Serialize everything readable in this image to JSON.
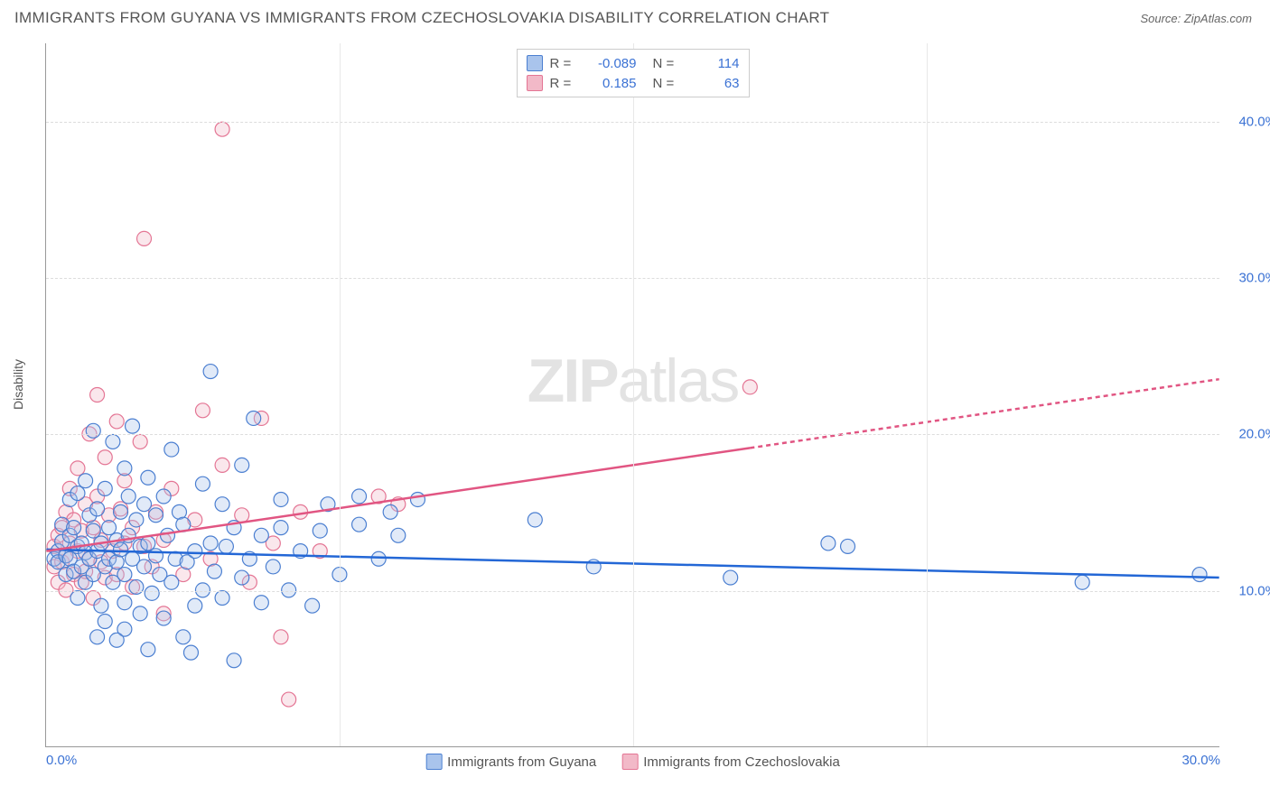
{
  "header": {
    "title": "IMMIGRANTS FROM GUYANA VS IMMIGRANTS FROM CZECHOSLOVAKIA DISABILITY CORRELATION CHART",
    "source_prefix": "Source: ",
    "source_name": "ZipAtlas.com"
  },
  "ylabel": "Disability",
  "watermark_bold": "ZIP",
  "watermark_light": "atlas",
  "chart": {
    "type": "scatter_with_regression",
    "background_color": "#ffffff",
    "axis_color": "#999999",
    "grid_color": "#dddddd",
    "tick_label_color": "#3b72d4",
    "xlim": [
      0,
      30
    ],
    "ylim": [
      0,
      45
    ],
    "y_ticks": [
      10,
      20,
      30,
      40
    ],
    "y_tick_labels": [
      "10.0%",
      "20.0%",
      "30.0%",
      "40.0%"
    ],
    "x_ticks": [
      0,
      30
    ],
    "x_tick_labels": [
      "0.0%",
      "30.0%"
    ],
    "x_grid_positions": [
      7.5,
      15,
      22.5
    ],
    "marker_radius": 8,
    "marker_stroke_width": 1.2,
    "marker_fill_opacity": 0.35,
    "line_width": 2.5,
    "dash_pattern": "5,4"
  },
  "series": [
    {
      "name": "Immigrants from Guyana",
      "color_fill": "#a9c4ec",
      "color_stroke": "#4b7fd1",
      "line_color": "#2367d6",
      "R": "-0.089",
      "N": "114",
      "regression": {
        "x1": 0,
        "y1": 12.6,
        "x2": 30,
        "y2": 10.8,
        "solid_until_x": 30
      },
      "points": [
        [
          0.2,
          12.0
        ],
        [
          0.3,
          12.5
        ],
        [
          0.3,
          11.8
        ],
        [
          0.4,
          13.1
        ],
        [
          0.4,
          14.2
        ],
        [
          0.5,
          12.2
        ],
        [
          0.5,
          11.0
        ],
        [
          0.6,
          13.5
        ],
        [
          0.6,
          12.0
        ],
        [
          0.6,
          15.8
        ],
        [
          0.7,
          11.2
        ],
        [
          0.7,
          14.0
        ],
        [
          0.8,
          12.8
        ],
        [
          0.8,
          16.2
        ],
        [
          0.8,
          9.5
        ],
        [
          0.9,
          13.0
        ],
        [
          0.9,
          11.5
        ],
        [
          1.0,
          17.0
        ],
        [
          1.0,
          12.4
        ],
        [
          1.0,
          10.5
        ],
        [
          1.1,
          14.8
        ],
        [
          1.1,
          12.0
        ],
        [
          1.2,
          13.8
        ],
        [
          1.2,
          11.0
        ],
        [
          1.2,
          20.2
        ],
        [
          1.3,
          15.2
        ],
        [
          1.3,
          12.5
        ],
        [
          1.4,
          9.0
        ],
        [
          1.4,
          13.0
        ],
        [
          1.5,
          16.5
        ],
        [
          1.5,
          11.5
        ],
        [
          1.5,
          8.0
        ],
        [
          1.6,
          12.0
        ],
        [
          1.6,
          14.0
        ],
        [
          1.7,
          19.5
        ],
        [
          1.7,
          10.5
        ],
        [
          1.8,
          13.2
        ],
        [
          1.8,
          11.8
        ],
        [
          1.9,
          15.0
        ],
        [
          1.9,
          12.6
        ],
        [
          2.0,
          17.8
        ],
        [
          2.0,
          11.0
        ],
        [
          2.0,
          9.2
        ],
        [
          2.1,
          13.5
        ],
        [
          2.1,
          16.0
        ],
        [
          2.2,
          12.0
        ],
        [
          2.2,
          20.5
        ],
        [
          2.3,
          10.2
        ],
        [
          2.3,
          14.5
        ],
        [
          2.4,
          12.8
        ],
        [
          2.4,
          8.5
        ],
        [
          2.5,
          15.5
        ],
        [
          2.5,
          11.5
        ],
        [
          2.6,
          13.0
        ],
        [
          2.6,
          17.2
        ],
        [
          2.7,
          9.8
        ],
        [
          2.8,
          12.2
        ],
        [
          2.8,
          14.8
        ],
        [
          2.9,
          11.0
        ],
        [
          3.0,
          16.0
        ],
        [
          3.0,
          8.2
        ],
        [
          3.1,
          13.5
        ],
        [
          3.2,
          10.5
        ],
        [
          3.2,
          19.0
        ],
        [
          3.3,
          12.0
        ],
        [
          3.4,
          15.0
        ],
        [
          3.5,
          7.0
        ],
        [
          3.5,
          14.2
        ],
        [
          3.6,
          11.8
        ],
        [
          3.8,
          9.0
        ],
        [
          3.8,
          12.5
        ],
        [
          4.0,
          10.0
        ],
        [
          4.0,
          16.8
        ],
        [
          4.2,
          13.0
        ],
        [
          4.2,
          24.0
        ],
        [
          4.3,
          11.2
        ],
        [
          4.5,
          15.5
        ],
        [
          4.5,
          9.5
        ],
        [
          4.6,
          12.8
        ],
        [
          4.8,
          14.0
        ],
        [
          5.0,
          10.8
        ],
        [
          5.0,
          18.0
        ],
        [
          5.2,
          12.0
        ],
        [
          5.3,
          21.0
        ],
        [
          5.5,
          13.5
        ],
        [
          5.5,
          9.2
        ],
        [
          5.8,
          11.5
        ],
        [
          6.0,
          15.8
        ],
        [
          6.0,
          14.0
        ],
        [
          6.2,
          10.0
        ],
        [
          6.5,
          12.5
        ],
        [
          6.8,
          9.0
        ],
        [
          7.0,
          13.8
        ],
        [
          7.2,
          15.5
        ],
        [
          7.5,
          11.0
        ],
        [
          8.0,
          14.2
        ],
        [
          8.0,
          16.0
        ],
        [
          8.5,
          12.0
        ],
        [
          8.8,
          15.0
        ],
        [
          9.0,
          13.5
        ],
        [
          9.5,
          15.8
        ],
        [
          12.5,
          14.5
        ],
        [
          14.0,
          11.5
        ],
        [
          17.5,
          10.8
        ],
        [
          20.0,
          13.0
        ],
        [
          20.5,
          12.8
        ],
        [
          26.5,
          10.5
        ],
        [
          29.5,
          11.0
        ],
        [
          3.7,
          6.0
        ],
        [
          4.8,
          5.5
        ],
        [
          2.0,
          7.5
        ],
        [
          1.3,
          7.0
        ],
        [
          1.8,
          6.8
        ],
        [
          2.6,
          6.2
        ]
      ]
    },
    {
      "name": "Immigrants from Czechoslovakia",
      "color_fill": "#f2b9c8",
      "color_stroke": "#e47594",
      "line_color": "#e15582",
      "R": "0.185",
      "N": "63",
      "regression": {
        "x1": 0,
        "y1": 12.5,
        "x2": 30,
        "y2": 23.5,
        "solid_until_x": 18
      },
      "points": [
        [
          0.2,
          11.5
        ],
        [
          0.2,
          12.8
        ],
        [
          0.3,
          13.5
        ],
        [
          0.3,
          10.5
        ],
        [
          0.4,
          14.0
        ],
        [
          0.4,
          11.8
        ],
        [
          0.5,
          12.2
        ],
        [
          0.5,
          15.0
        ],
        [
          0.5,
          10.0
        ],
        [
          0.6,
          13.0
        ],
        [
          0.6,
          16.5
        ],
        [
          0.7,
          11.0
        ],
        [
          0.7,
          14.5
        ],
        [
          0.8,
          12.5
        ],
        [
          0.8,
          17.8
        ],
        [
          0.9,
          10.5
        ],
        [
          0.9,
          13.8
        ],
        [
          1.0,
          15.5
        ],
        [
          1.0,
          11.2
        ],
        [
          1.1,
          20.0
        ],
        [
          1.1,
          12.0
        ],
        [
          1.2,
          14.0
        ],
        [
          1.2,
          9.5
        ],
        [
          1.3,
          16.0
        ],
        [
          1.3,
          22.5
        ],
        [
          1.4,
          11.8
        ],
        [
          1.4,
          13.2
        ],
        [
          1.5,
          18.5
        ],
        [
          1.5,
          10.8
        ],
        [
          1.6,
          14.8
        ],
        [
          1.7,
          12.5
        ],
        [
          1.8,
          20.8
        ],
        [
          1.8,
          11.0
        ],
        [
          1.9,
          15.2
        ],
        [
          2.0,
          13.0
        ],
        [
          2.0,
          17.0
        ],
        [
          2.2,
          10.2
        ],
        [
          2.2,
          14.0
        ],
        [
          2.4,
          19.5
        ],
        [
          2.5,
          12.8
        ],
        [
          2.5,
          32.5
        ],
        [
          2.7,
          11.5
        ],
        [
          2.8,
          15.0
        ],
        [
          3.0,
          13.2
        ],
        [
          3.0,
          8.5
        ],
        [
          3.2,
          16.5
        ],
        [
          3.5,
          11.0
        ],
        [
          3.8,
          14.5
        ],
        [
          4.0,
          21.5
        ],
        [
          4.2,
          12.0
        ],
        [
          4.5,
          18.0
        ],
        [
          4.5,
          39.5
        ],
        [
          5.0,
          14.8
        ],
        [
          5.2,
          10.5
        ],
        [
          5.5,
          21.0
        ],
        [
          5.8,
          13.0
        ],
        [
          6.0,
          7.0
        ],
        [
          6.2,
          3.0
        ],
        [
          6.5,
          15.0
        ],
        [
          7.0,
          12.5
        ],
        [
          8.5,
          16.0
        ],
        [
          9.0,
          15.5
        ],
        [
          18.0,
          23.0
        ]
      ]
    }
  ],
  "legend_labels": {
    "R": "R =",
    "N": "N ="
  }
}
